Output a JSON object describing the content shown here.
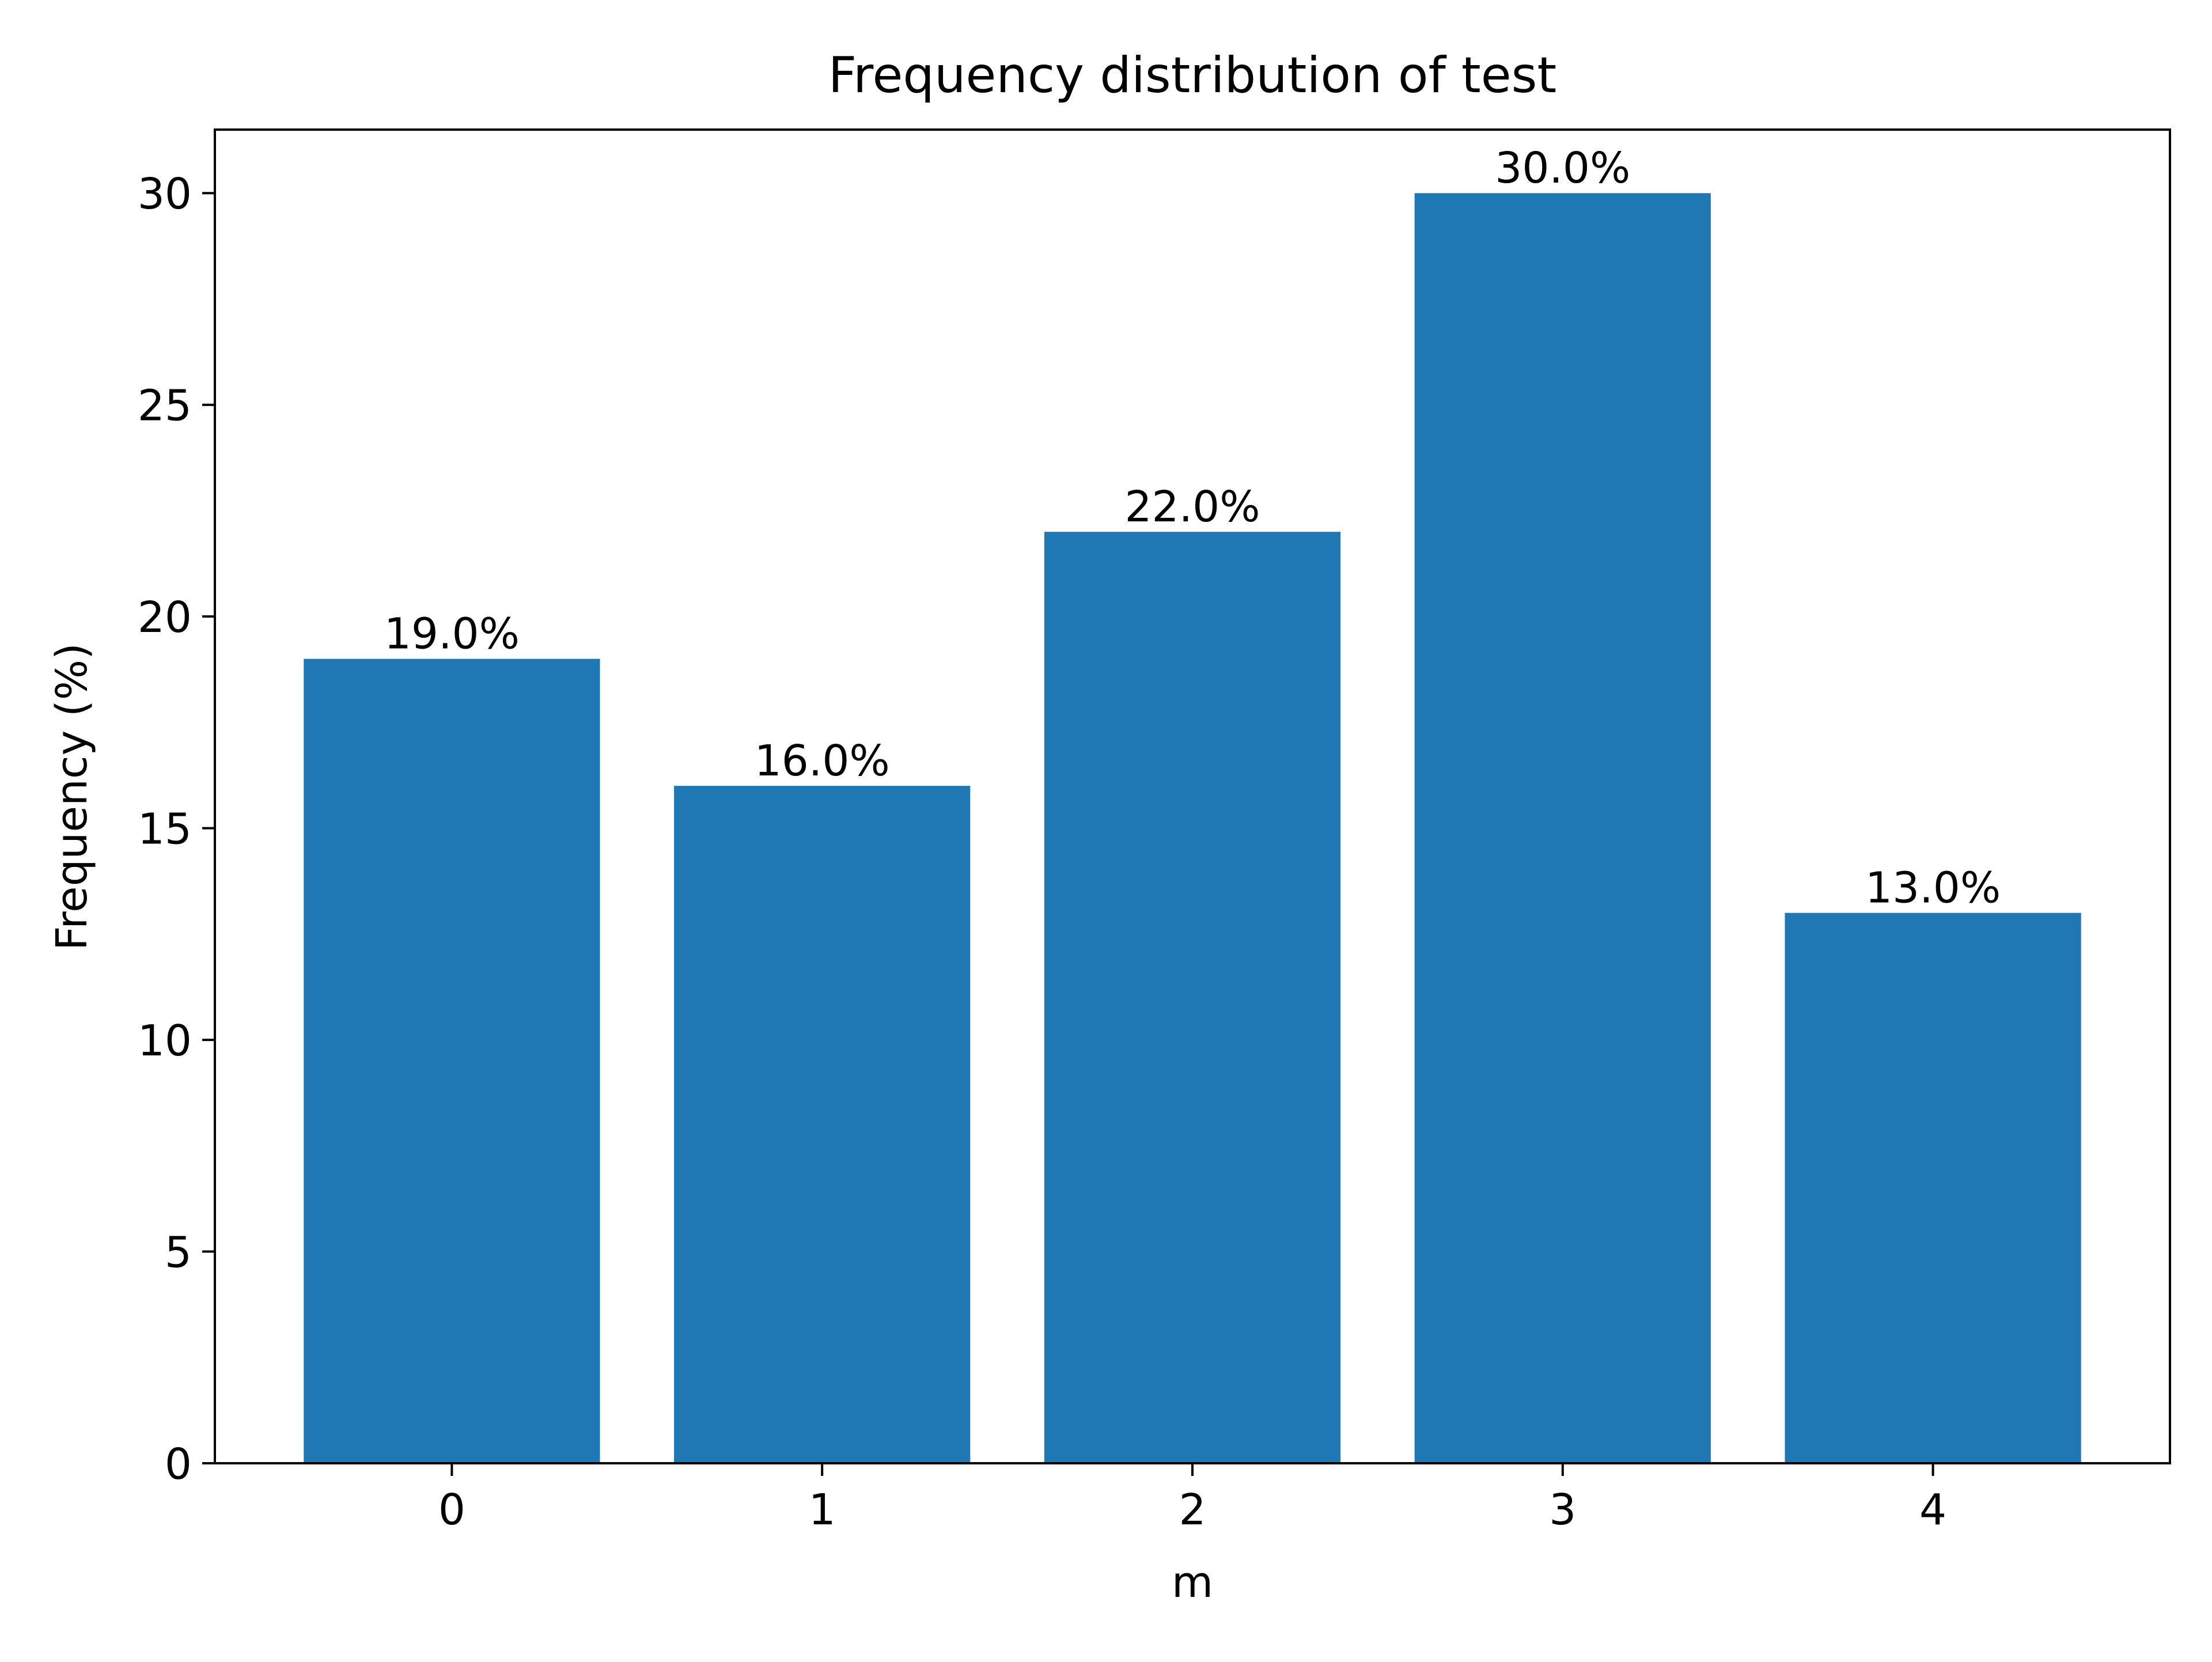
{
  "chart_data": {
    "type": "bar",
    "title": "Frequency distribution of test",
    "xlabel": "m",
    "ylabel": "Frequency (%)",
    "categories": [
      "0",
      "1",
      "2",
      "3",
      "4"
    ],
    "values": [
      19.0,
      16.0,
      22.0,
      30.0,
      13.0
    ],
    "data_labels": [
      "19.0%",
      "16.0%",
      "22.0%",
      "30.0%",
      "13.0%"
    ],
    "ylim": [
      0,
      31.5
    ],
    "yticks": [
      0,
      5,
      10,
      15,
      20,
      25,
      30
    ],
    "grid": false,
    "bar_color": "#1f77b4"
  }
}
